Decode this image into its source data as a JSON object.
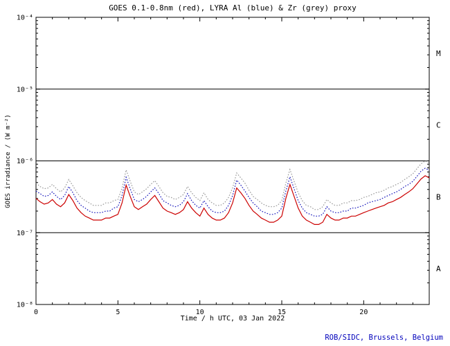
{
  "title": "GOES 0.1-0.8nm (red), LYRA Al (blue) & Zr (grey) proxy",
  "xlabel": "Time / h UTC, 03 Jan 2022",
  "ylabel": "GOES irradiance / (W m⁻²)",
  "credit": "ROB/SIDC, Brussels, Belgium",
  "colors": {
    "red": "#cc0000",
    "blue": "#1515bb",
    "grey": "#999999",
    "axis": "#000000",
    "credit": "#0000bb"
  },
  "chart_data": {
    "type": "line",
    "title": "GOES 0.1-0.8nm (red), LYRA Al (blue) & Zr (grey) proxy",
    "xlabel": "Time / h UTC, 03 Jan 2022",
    "ylabel": "GOES irradiance / (W m⁻²)",
    "x_range": [
      0,
      24
    ],
    "x_major_ticks": [
      0,
      5,
      10,
      15,
      20
    ],
    "x_minor_step": 1,
    "y_scale": "log",
    "y_log_range": [
      -8,
      -4
    ],
    "y_tick_exponents": [
      -4,
      -5,
      -6,
      -7,
      -8
    ],
    "hline_exponents": [
      -5,
      -6,
      -7
    ],
    "class_labels": [
      {
        "label": "M",
        "exp_mid": -4.5
      },
      {
        "label": "C",
        "exp_mid": -5.5
      },
      {
        "label": "B",
        "exp_mid": -6.5
      },
      {
        "label": "A",
        "exp_mid": -7.5
      }
    ],
    "x_start_h": 0,
    "x_step_h": 0.25,
    "value_scale": 1e-07,
    "values_unit": "1e-7 W m^-2",
    "series": [
      {
        "name": "GOES 0.1-0.8nm",
        "color_key": "red",
        "dotted": false,
        "values": [
          3.0,
          2.7,
          2.5,
          2.6,
          2.9,
          2.5,
          2.3,
          2.6,
          3.4,
          2.8,
          2.2,
          1.9,
          1.7,
          1.6,
          1.5,
          1.5,
          1.5,
          1.6,
          1.6,
          1.7,
          1.8,
          2.6,
          4.6,
          3.2,
          2.3,
          2.1,
          2.3,
          2.5,
          2.9,
          3.3,
          2.7,
          2.2,
          2.0,
          1.9,
          1.8,
          1.9,
          2.1,
          2.7,
          2.2,
          1.9,
          1.7,
          2.2,
          1.8,
          1.6,
          1.5,
          1.5,
          1.6,
          1.9,
          2.6,
          4.2,
          3.6,
          3.0,
          2.4,
          2.0,
          1.8,
          1.6,
          1.5,
          1.4,
          1.4,
          1.5,
          1.7,
          3.0,
          4.7,
          3.2,
          2.2,
          1.7,
          1.5,
          1.4,
          1.3,
          1.3,
          1.4,
          1.8,
          1.6,
          1.5,
          1.5,
          1.6,
          1.6,
          1.7,
          1.7,
          1.8,
          1.9,
          2.0,
          2.1,
          2.2,
          2.3,
          2.4,
          2.6,
          2.7,
          2.9,
          3.1,
          3.4,
          3.7,
          4.1,
          4.8,
          5.6,
          6.2,
          5.8
        ]
      },
      {
        "name": "LYRA Al proxy",
        "color_key": "blue",
        "dotted": true,
        "values": [
          3.8,
          3.5,
          3.2,
          3.3,
          3.7,
          3.2,
          2.9,
          3.3,
          4.4,
          3.6,
          2.8,
          2.4,
          2.2,
          2.0,
          1.9,
          1.9,
          1.9,
          2.0,
          2.0,
          2.2,
          2.3,
          3.3,
          5.9,
          4.1,
          2.9,
          2.7,
          2.9,
          3.2,
          3.7,
          4.2,
          3.5,
          2.8,
          2.6,
          2.4,
          2.3,
          2.4,
          2.7,
          3.5,
          2.8,
          2.4,
          2.2,
          2.8,
          2.3,
          2.0,
          1.9,
          1.9,
          2.0,
          2.4,
          3.3,
          5.4,
          4.6,
          3.8,
          3.1,
          2.6,
          2.3,
          2.0,
          1.9,
          1.8,
          1.8,
          1.9,
          2.2,
          3.8,
          6.0,
          4.1,
          2.8,
          2.2,
          1.9,
          1.8,
          1.7,
          1.7,
          1.8,
          2.3,
          2.0,
          1.9,
          1.9,
          2.0,
          2.0,
          2.2,
          2.2,
          2.3,
          2.4,
          2.6,
          2.7,
          2.8,
          2.9,
          3.1,
          3.3,
          3.5,
          3.7,
          4.0,
          4.4,
          4.7,
          5.2,
          6.1,
          7.2,
          7.9,
          7.4
        ]
      },
      {
        "name": "LYRA Zr proxy",
        "color_key": "grey",
        "dotted": true,
        "values": [
          4.9,
          4.4,
          4.1,
          4.2,
          4.7,
          4.1,
          3.7,
          4.2,
          5.5,
          4.5,
          3.6,
          3.1,
          2.8,
          2.6,
          2.4,
          2.4,
          2.4,
          2.6,
          2.6,
          2.8,
          2.9,
          4.2,
          7.5,
          5.2,
          3.7,
          3.4,
          3.7,
          4.1,
          4.7,
          5.3,
          4.4,
          3.6,
          3.2,
          3.1,
          2.9,
          3.1,
          3.4,
          4.4,
          3.6,
          3.1,
          2.8,
          3.6,
          2.9,
          2.6,
          2.4,
          2.4,
          2.6,
          3.1,
          4.2,
          6.8,
          5.8,
          4.9,
          3.9,
          3.2,
          2.9,
          2.6,
          2.4,
          2.3,
          2.3,
          2.4,
          2.8,
          4.9,
          7.6,
          5.2,
          3.6,
          2.8,
          2.4,
          2.3,
          2.1,
          2.1,
          2.3,
          2.9,
          2.6,
          2.4,
          2.4,
          2.6,
          2.6,
          2.8,
          2.8,
          2.9,
          3.1,
          3.2,
          3.4,
          3.6,
          3.7,
          3.9,
          4.2,
          4.4,
          4.7,
          5.0,
          5.5,
          6.0,
          6.6,
          7.8,
          9.1,
          10.0,
          9.4
        ]
      }
    ]
  }
}
